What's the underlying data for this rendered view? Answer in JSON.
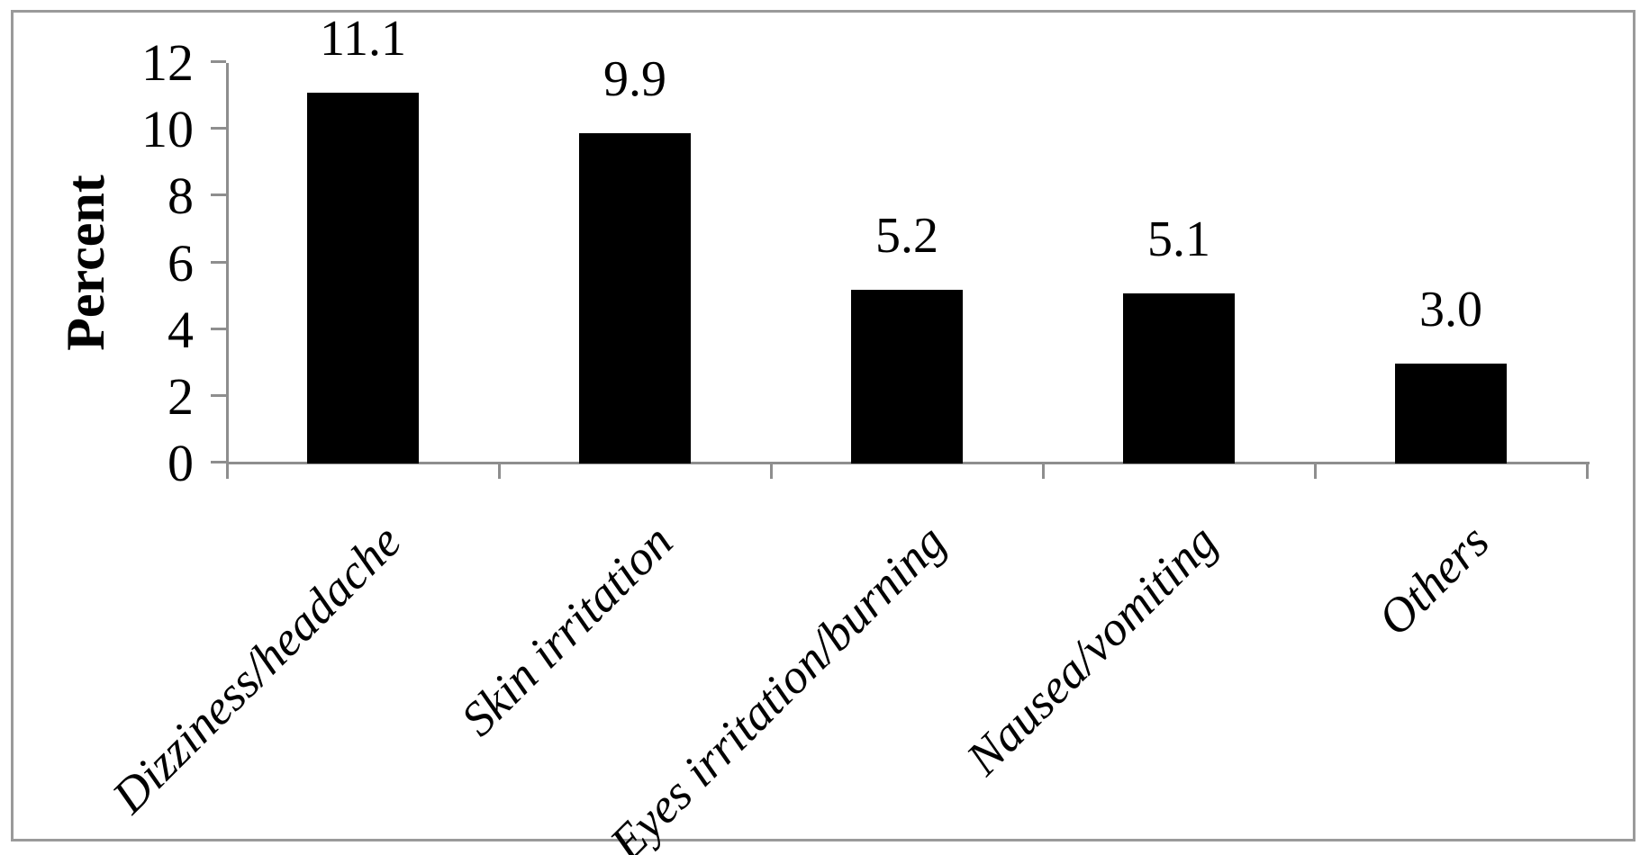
{
  "figure": {
    "background": "#ffffff",
    "border_color": "#9a9a9a"
  },
  "chart_data": {
    "type": "bar",
    "title": "",
    "categories": [
      "Dizziness/headache",
      "Skin irritation",
      "Eyes irritation/burning",
      "Nausea/vomiting",
      "Others"
    ],
    "values": [
      11.1,
      9.9,
      5.2,
      5.1,
      3.0
    ],
    "value_labels": [
      "11.1",
      "9.9",
      "5.2",
      "5.1",
      "3.0"
    ],
    "xlabel": "",
    "ylabel": "Percent",
    "ylim": [
      0,
      12
    ],
    "yticks": [
      0,
      2,
      4,
      6,
      8,
      10,
      12
    ],
    "grid": false,
    "legend": "none",
    "bar_color": "#000000",
    "axis_color": "#8e8e8e",
    "label_color": "#000000"
  }
}
